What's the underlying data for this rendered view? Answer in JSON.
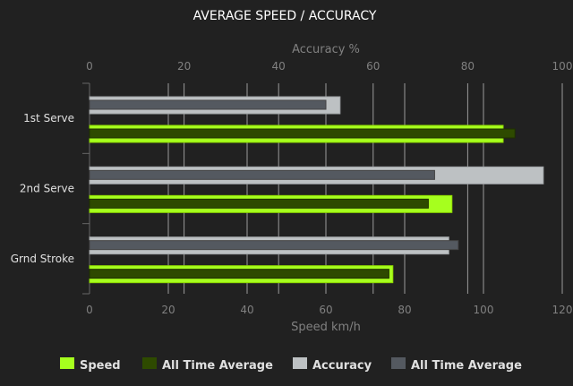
{
  "chart_data": {
    "type": "bar",
    "orientation": "horizontal",
    "title": "AVERAGE SPEED / ACCURACY",
    "categories": [
      "1st Serve",
      "2nd Serve",
      "Grnd Stroke"
    ],
    "top_axis": {
      "label": "Accuracy %",
      "range": [
        0,
        100
      ],
      "ticks": [
        0,
        20,
        40,
        60,
        80,
        100
      ]
    },
    "bottom_axis": {
      "label": "Speed km/h",
      "range": [
        0,
        120
      ],
      "ticks": [
        0,
        20,
        40,
        60,
        80,
        100,
        120
      ]
    },
    "grid": true,
    "legend_position": "bottom",
    "series": [
      {
        "name": "Speed",
        "axis": "speed",
        "color": "#a6ff1e",
        "values": [
          105,
          92,
          77
        ]
      },
      {
        "name": "All Time Average",
        "axis": "speed",
        "color": "#2e4a00",
        "values": [
          108,
          86,
          76
        ]
      },
      {
        "name": "Accuracy",
        "axis": "accuracy",
        "color": "#bdc1c3",
        "values": [
          53,
          96,
          76
        ]
      },
      {
        "name": "All Time Average",
        "axis": "accuracy",
        "color": "#545960",
        "values": [
          50,
          73,
          78
        ]
      }
    ]
  }
}
